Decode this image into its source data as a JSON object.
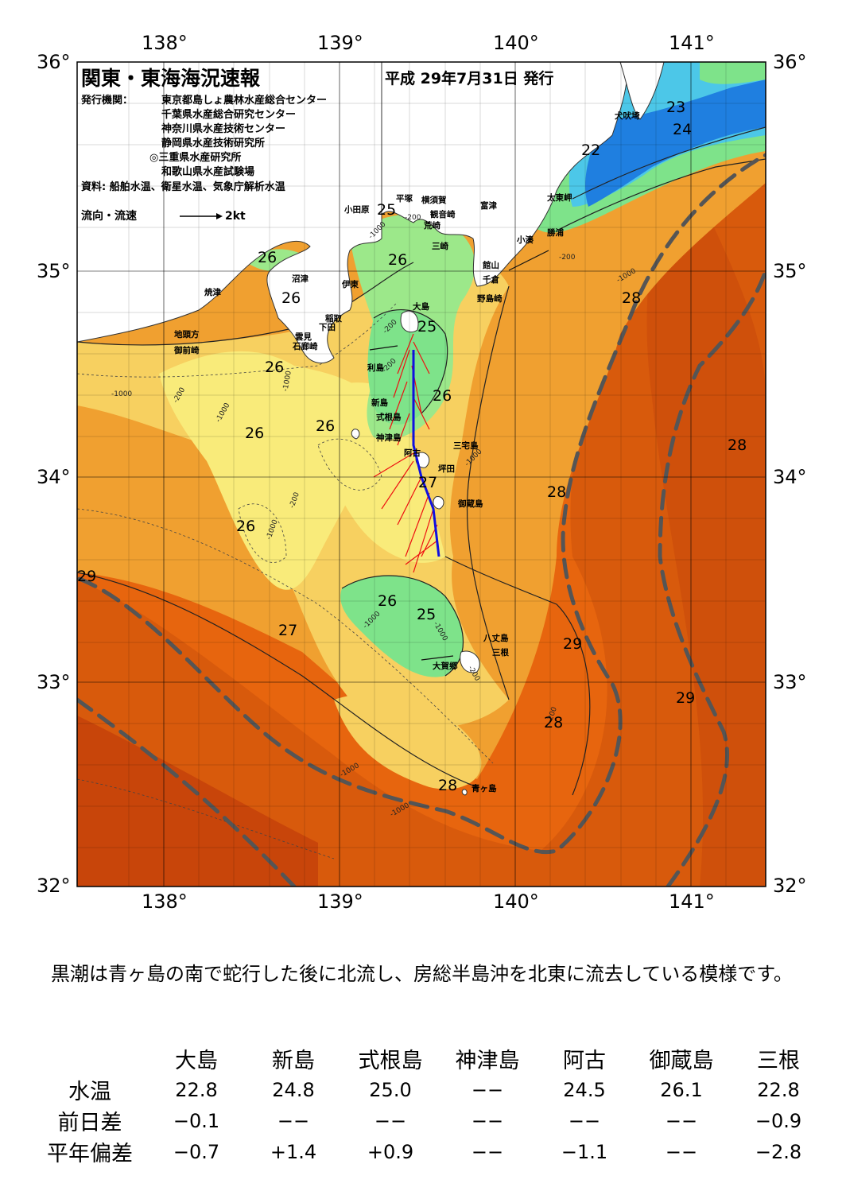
{
  "header": {
    "title": "関東・東海海況速報",
    "date": "平成 29年7月31日 発行",
    "issuers_label": "発行機関：",
    "issuers": [
      "東京都島しょ農林水産総合センター",
      "千葉県水産総合研究センター",
      "神奈川県水産技術センター",
      "静岡県水産技術研究所",
      "◎三重県水産研究所",
      "和歌山県水産試験場"
    ],
    "source": "資料: 船舶水温、衛星水温、気象庁解析水温",
    "flow_label": "流向・流速",
    "flow_scale": "2kt"
  },
  "axes": {
    "lon_labels": [
      "138°",
      "139°",
      "140°",
      "141°"
    ],
    "lat_labels": [
      "36°",
      "35°",
      "34°",
      "33°",
      "32°"
    ]
  },
  "map": {
    "place_names": [
      "犬吠埼",
      "太東岬",
      "勝浦",
      "小湊",
      "富津",
      "館山",
      "千倉",
      "野島崎",
      "横須賀",
      "観音崎",
      "平塚",
      "荒崎",
      "三崎",
      "小田原",
      "伊東",
      "沼津",
      "焼津",
      "稲取",
      "下田",
      "雲見",
      "石廊崎",
      "地頭方",
      "御前崎",
      "大島",
      "利島",
      "新島",
      "式根島",
      "神津島",
      "阿古",
      "三宅島",
      "坪田",
      "御蔵島",
      "八丈島",
      "三根",
      "大賀郷",
      "青ヶ島"
    ],
    "temp_labels": [
      "23",
      "24",
      "22",
      "25",
      "26",
      "26",
      "26",
      "26",
      "26",
      "26",
      "25",
      "26",
      "28",
      "28",
      "27",
      "26",
      "26",
      "25",
      "27",
      "28",
      "29",
      "29",
      "28",
      "28",
      "29"
    ],
    "depth_labels": [
      "-1000",
      "-200",
      "-1000",
      "-200",
      "-1000",
      "-1000",
      "-200",
      "-200",
      "-1000",
      "-1000",
      "-1000",
      "-1000",
      "-200",
      "-200",
      "-1000",
      "-200",
      "-1000",
      "-1000",
      "-200"
    ],
    "colors": {
      "sea_warm": "#e7650e",
      "sea_hot": "#c8450a",
      "sea_mid": "#f0a030",
      "sea_cool": "#f7d060",
      "sea_cooler": "#f9eb7a",
      "sea_green": "#7ee38a",
      "sea_cyan": "#4cc7e8",
      "sea_blue": "#1f7fe0",
      "land": "#ffffff",
      "kuroshio_axis": "#555555",
      "ship_track": "#1010e0",
      "current_vectors": "#ee1111"
    }
  },
  "summary": "黒潮は青ヶ島の南で蛇行した後に北流し、房総半島沖を北東に流去している模様です。",
  "table": {
    "headers": [
      "大島",
      "新島",
      "式根島",
      "神津島",
      "阿古",
      "御蔵島",
      "三根"
    ],
    "rows": [
      {
        "label": "水温",
        "values": [
          "22.8",
          "24.8",
          "25.0",
          "−−",
          "24.5",
          "26.1",
          "22.8"
        ]
      },
      {
        "label": "前日差",
        "values": [
          "−0.1",
          "−−",
          "−−",
          "−−",
          "−−",
          "−−",
          "−0.9"
        ]
      },
      {
        "label": "平年偏差",
        "values": [
          "−0.7",
          "+1.4",
          "+0.9",
          "−−",
          "−1.1",
          "−−",
          "−2.8"
        ]
      }
    ]
  }
}
